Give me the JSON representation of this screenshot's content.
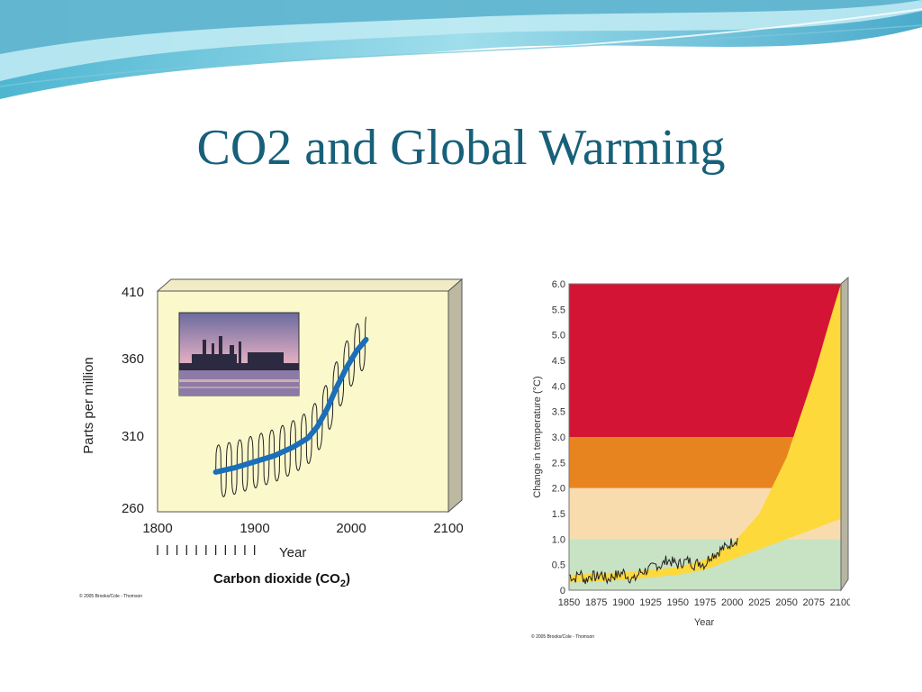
{
  "slide": {
    "title": "CO2 and Global Warming"
  },
  "colors": {
    "title": "#17607a",
    "co2_background": "#fbf8cc",
    "co2_curve": "#1a6fb8",
    "temp_red": "#d41434",
    "temp_orange": "#e8841f",
    "temp_peach": "#f8dcae",
    "temp_green": "#c8e2c4",
    "temp_projection": "#fdd93c"
  },
  "chart_data": [
    {
      "type": "line",
      "ylabel": "Parts per million",
      "xlabel": "Year",
      "caption": "Carbon dioxide (CO2)",
      "caption_main": "Carbon dioxide (CO",
      "caption_sub": "2",
      "caption_end": ")",
      "copyright": "© 2005 Brooks/Cole - Thomson",
      "xlim": [
        1800,
        2100
      ],
      "ylim": [
        260,
        410
      ],
      "x_ticks": [
        "1800",
        "1900",
        "2000",
        "2100"
      ],
      "y_ticks": [
        "410",
        "360",
        "310",
        "260"
      ],
      "series": [
        {
          "x": [
            1860,
            1880,
            1900,
            1920,
            1940,
            1955,
            1965,
            1975,
            1985,
            1995,
            2005,
            2015
          ],
          "y": [
            287,
            290,
            294,
            298,
            304,
            310,
            318,
            330,
            345,
            358,
            369,
            377
          ]
        }
      ],
      "annual_cycle_amplitude": 18,
      "inset_image": "industrial skyline at dusk"
    },
    {
      "type": "area",
      "ylabel": "Change in temperature (°C)",
      "xlabel": "Year",
      "copyright": "© 2005 Brooks/Cole - Thomson",
      "xlim": [
        1850,
        2100
      ],
      "ylim": [
        0,
        6.0
      ],
      "x_ticks": [
        "1850",
        "1875",
        "1900",
        "1925",
        "1950",
        "1975",
        "2000",
        "2025",
        "2050",
        "2075",
        "2100"
      ],
      "y_ticks": [
        "6.0",
        "5.5",
        "5.0",
        "4.5",
        "4.0",
        "3.5",
        "3.0",
        "2.5",
        "2.0",
        "1.5",
        "1.0",
        "0.5",
        "0"
      ],
      "bands": [
        {
          "from": 0,
          "to": 1.0,
          "color": "#c8e2c4"
        },
        {
          "from": 1.0,
          "to": 2.0,
          "color": "#f8dcae"
        },
        {
          "from": 2.0,
          "to": 3.0,
          "color": "#e8841f"
        },
        {
          "from": 3.0,
          "to": 6.0,
          "color": "#d41434"
        }
      ],
      "projection_upper": {
        "x": [
          1850,
          1900,
          1950,
          1975,
          2000,
          2025,
          2050,
          2075,
          2090,
          2100
        ],
        "y": [
          0.3,
          0.35,
          0.45,
          0.6,
          0.9,
          1.5,
          2.6,
          4.2,
          5.3,
          6.0
        ]
      },
      "projection_lower": {
        "x": [
          1850,
          1900,
          1950,
          1975,
          2000,
          2025,
          2050,
          2075,
          2100
        ],
        "y": [
          0.15,
          0.2,
          0.3,
          0.4,
          0.6,
          0.8,
          1.0,
          1.2,
          1.4
        ]
      },
      "observed": {
        "x": [
          1850,
          1855,
          1860,
          1865,
          1870,
          1875,
          1880,
          1885,
          1890,
          1895,
          1900,
          1905,
          1910,
          1915,
          1920,
          1925,
          1930,
          1935,
          1940,
          1945,
          1950,
          1955,
          1960,
          1965,
          1970,
          1975,
          1980,
          1985,
          1990,
          1995,
          2000,
          2005
        ],
        "y": [
          0.3,
          0.22,
          0.35,
          0.18,
          0.3,
          0.25,
          0.32,
          0.2,
          0.28,
          0.3,
          0.35,
          0.25,
          0.2,
          0.35,
          0.38,
          0.42,
          0.5,
          0.48,
          0.6,
          0.55,
          0.5,
          0.55,
          0.58,
          0.5,
          0.55,
          0.5,
          0.68,
          0.72,
          0.8,
          0.85,
          0.95,
          1.0
        ]
      }
    }
  ]
}
